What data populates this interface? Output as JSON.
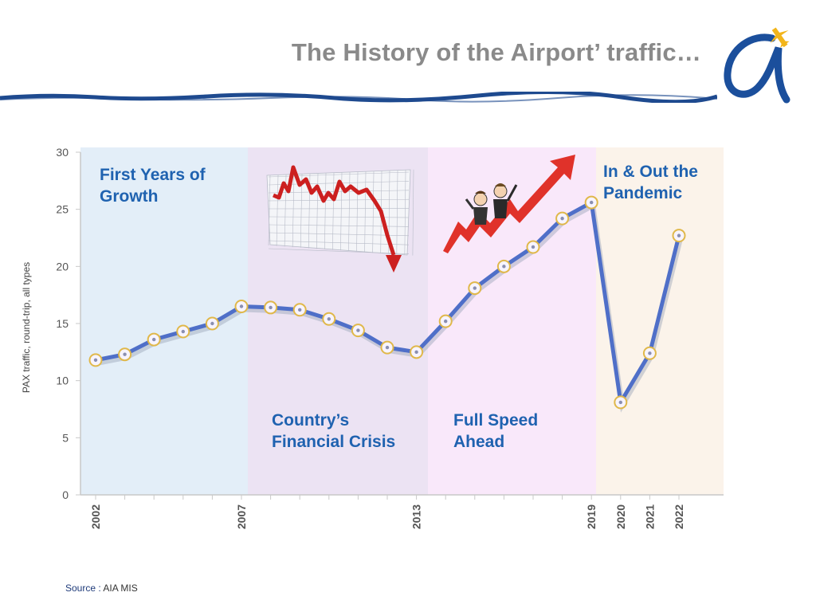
{
  "header": {
    "title": "The History of the Airport’ traffic…",
    "logo_icon": "alpha-airplane-logo"
  },
  "source": {
    "label": "Source :",
    "text": "AIA MIS"
  },
  "colors": {
    "line": "#4f6fc8",
    "title": "#8a8a8a",
    "phase_text": "#1f62b0",
    "phase1": "#e3eef8",
    "phase2": "#ece3f3",
    "phase3": "#f9e8fa",
    "phase4": "#fbf3ea"
  },
  "chart_data": {
    "type": "line",
    "ylabel": "PAX traffic, round-trip, all types",
    "ylim": [
      0,
      30
    ],
    "yticks": [
      0,
      5,
      10,
      15,
      20,
      25,
      30
    ],
    "x": [
      2002,
      2003,
      2004,
      2005,
      2006,
      2007,
      2008,
      2009,
      2010,
      2011,
      2012,
      2013,
      2014,
      2015,
      2016,
      2017,
      2018,
      2019,
      2020,
      2021,
      2022
    ],
    "x_tick_labels": [
      "2002",
      "2007",
      "2013",
      "2019",
      "2020",
      "2021",
      "2022"
    ],
    "series": [
      {
        "values": [
          11.8,
          12.3,
          13.6,
          14.3,
          15.0,
          16.5,
          16.4,
          16.2,
          15.4,
          14.4,
          12.9,
          12.5,
          15.2,
          18.1,
          20.0,
          21.7,
          24.2,
          25.6,
          8.1,
          12.4,
          22.7
        ]
      }
    ],
    "phases": [
      {
        "line1": "First Years of",
        "line2": "Growth",
        "start": 2002,
        "end": 2007
      },
      {
        "line1": "Country’s",
        "line2": "Financial Crisis",
        "start": 2007,
        "end": 2013
      },
      {
        "line1": "Full Speed",
        "line2": "Ahead",
        "start": 2013,
        "end": 2019
      },
      {
        "line1": "In & Out the",
        "line2": "Pandemic",
        "start": 2019,
        "end": 2022
      }
    ],
    "grid": false
  }
}
